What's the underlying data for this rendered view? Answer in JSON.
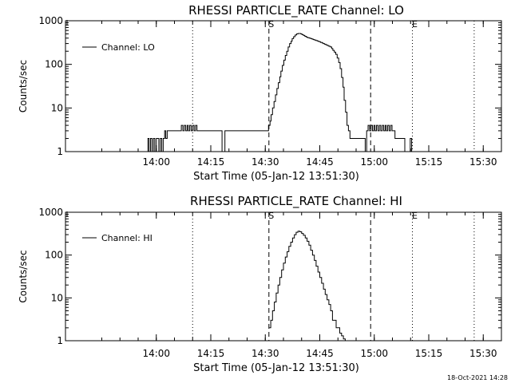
{
  "footer": {
    "timestamp": "18-Oct-2021 14:28"
  },
  "chart_data": [
    {
      "type": "line",
      "title": "RHESSI PARTICLE_RATE Channel: LO",
      "xlabel": "Start Time (05-Jan-12 13:51:30)",
      "ylabel": "Counts/sec",
      "xlim_min": [
        -16.5,
        103.5
      ],
      "ylim": [
        1,
        1000
      ],
      "y_scale": "log",
      "x_ticks": [
        "14:00",
        "14:15",
        "14:30",
        "14:45",
        "15:00",
        "15:15",
        "15:30"
      ],
      "x_tick_minutes": [
        8.5,
        23.5,
        38.5,
        53.5,
        68.5,
        83.5,
        98.5
      ],
      "y_ticks": [
        "1",
        "10",
        "100",
        "1000"
      ],
      "y_tick_values": [
        1,
        10,
        100,
        1000
      ],
      "legend": {
        "label": "Channel: LO",
        "position": "top-left"
      },
      "marker_labels": {
        "start": "S",
        "end": "E"
      },
      "vlines": [
        {
          "x": 18.5,
          "style": "dotted"
        },
        {
          "x": 39.5,
          "style": "dashed"
        },
        {
          "x": 67.5,
          "style": "dashed"
        },
        {
          "x": 79.0,
          "style": "dotted"
        },
        {
          "x": 96.0,
          "style": "dotted"
        }
      ],
      "series": [
        {
          "name": "Channel: LO",
          "x_min": [
            5.8,
            6.2,
            6.5,
            6.9,
            7.3,
            7.7,
            8.1,
            8.5,
            8.9,
            9.2,
            9.6,
            10.0,
            10.4,
            10.8,
            11.1,
            11.5,
            11.9,
            12.3,
            12.7,
            13.1,
            13.5,
            13.9,
            14.3,
            14.6,
            15.0,
            15.4,
            15.8,
            16.2,
            16.6,
            17.0,
            17.3,
            17.7,
            18.1,
            18.5,
            18.9,
            19.3,
            19.7,
            20.0,
            20.4,
            20.8,
            21.2,
            21.6,
            22.0,
            22.4,
            22.8,
            23.1,
            23.5,
            23.9,
            24.3,
            24.7,
            25.1,
            25.5,
            25.8,
            26.2,
            26.6,
            27.0,
            27.4,
            27.8,
            28.2,
            28.5,
            28.9,
            29.3,
            29.7,
            30.1,
            30.5,
            30.9,
            31.3,
            31.6,
            32.0,
            32.4,
            32.8,
            33.2,
            33.6,
            34.0,
            34.3,
            34.7,
            35.1,
            35.5,
            35.9,
            36.3,
            36.7,
            37.1,
            37.4,
            37.8,
            38.2,
            38.6,
            39.0,
            39.4,
            39.8,
            40.1,
            40.5,
            40.9,
            41.3,
            41.7,
            42.1,
            42.5,
            42.8,
            43.2,
            43.6,
            44.0,
            44.4,
            44.8,
            45.2,
            45.6,
            45.9,
            46.3,
            46.7,
            47.1,
            47.5,
            47.9,
            48.3,
            48.6,
            49.0,
            49.4,
            49.8,
            50.2,
            50.6,
            51.0,
            51.4,
            51.7,
            52.1,
            52.5,
            52.9,
            53.3,
            53.7,
            54.1,
            54.4,
            54.8,
            55.2,
            55.6,
            56.0,
            56.4,
            56.8,
            57.1,
            57.5,
            57.9,
            58.3,
            58.7,
            59.1,
            59.5,
            59.9,
            60.2,
            60.6,
            61.0,
            61.4,
            61.8,
            62.2,
            62.6,
            62.9,
            63.3,
            63.7,
            64.1,
            64.5,
            64.9,
            65.3,
            65.7,
            66.0,
            66.4,
            66.8,
            67.2,
            67.6,
            68.0,
            68.4,
            68.7,
            69.1,
            69.5,
            69.9,
            70.3,
            70.7,
            71.1,
            71.5,
            71.8,
            72.2,
            72.6,
            73.0,
            73.4,
            73.8,
            74.2,
            74.5,
            74.9,
            75.3,
            75.7,
            76.1,
            76.5,
            76.9,
            77.2,
            77.6,
            78.0,
            78.4,
            78.8,
            79.2,
            79.6,
            80.0,
            80.3,
            80.7,
            81.1,
            81.5,
            81.9,
            82.3,
            82.7,
            83.0,
            83.4,
            83.8,
            84.2,
            84.6,
            85.0,
            85.4,
            85.8,
            86.1,
            86.5,
            86.9,
            87.3,
            87.7,
            88.1,
            88.5
          ],
          "values": [
            1,
            2,
            1,
            2,
            1,
            2,
            1,
            2,
            2,
            1,
            2,
            1,
            2,
            3,
            2,
            3,
            3,
            3,
            3,
            3,
            3,
            3,
            3,
            3,
            3,
            4,
            3,
            4,
            3,
            4,
            3,
            4,
            3,
            4,
            3,
            4,
            3,
            3,
            3,
            3,
            3,
            3,
            3,
            3,
            3,
            3,
            3,
            3,
            3,
            3,
            3,
            3,
            3,
            3,
            1,
            1,
            3,
            3,
            3,
            3,
            3,
            3,
            3,
            3,
            3,
            3,
            3,
            3,
            3,
            3,
            3,
            3,
            3,
            3,
            3,
            3,
            3,
            3,
            3,
            3,
            3,
            3,
            3,
            3,
            3,
            3,
            3,
            4,
            5,
            7,
            10,
            14,
            20,
            28,
            38,
            52,
            70,
            95,
            125,
            160,
            200,
            250,
            300,
            340,
            390,
            430,
            470,
            500,
            510,
            510,
            500,
            480,
            460,
            440,
            420,
            410,
            400,
            390,
            380,
            370,
            360,
            350,
            340,
            330,
            320,
            310,
            300,
            290,
            280,
            270,
            260,
            250,
            230,
            210,
            190,
            170,
            140,
            110,
            80,
            50,
            30,
            15,
            8,
            4,
            3,
            2,
            2,
            2,
            2,
            2,
            2,
            2,
            2,
            2,
            2,
            2,
            1,
            3,
            4,
            3,
            4,
            3,
            4,
            3,
            4,
            3,
            4,
            3,
            4,
            3,
            4,
            3,
            4,
            3,
            4,
            3,
            3,
            2,
            2,
            2,
            2,
            2,
            2,
            2,
            1,
            1,
            1,
            1,
            2,
            1,
            1,
            1,
            1,
            1,
            1,
            1,
            1,
            1,
            1,
            1,
            1,
            1
          ]
        }
      ]
    },
    {
      "type": "line",
      "title": "RHESSI PARTICLE_RATE Channel: HI",
      "xlabel": "Start Time (05-Jan-12 13:51:30)",
      "ylabel": "Counts/sec",
      "xlim_min": [
        -16.5,
        103.5
      ],
      "ylim": [
        1,
        1000
      ],
      "y_scale": "log",
      "x_ticks": [
        "14:00",
        "14:15",
        "14:30",
        "14:45",
        "15:00",
        "15:15",
        "15:30"
      ],
      "x_tick_minutes": [
        8.5,
        23.5,
        38.5,
        53.5,
        68.5,
        83.5,
        98.5
      ],
      "y_ticks": [
        "1",
        "10",
        "100",
        "1000"
      ],
      "y_tick_values": [
        1,
        10,
        100,
        1000
      ],
      "legend": {
        "label": "Channel: HI",
        "position": "top-left"
      },
      "marker_labels": {
        "start": "S",
        "end": "E"
      },
      "vlines": [
        {
          "x": 18.5,
          "style": "dotted"
        },
        {
          "x": 39.5,
          "style": "dashed"
        },
        {
          "x": 67.5,
          "style": "dashed"
        },
        {
          "x": 79.0,
          "style": "dotted"
        },
        {
          "x": 96.0,
          "style": "dotted"
        }
      ],
      "series": [
        {
          "name": "Channel: HI",
          "x_min": [
            39.6,
            40.0,
            40.5,
            41.0,
            41.5,
            42.0,
            42.5,
            43.0,
            43.5,
            44.0,
            44.5,
            45.0,
            45.5,
            46.0,
            46.5,
            47.0,
            47.5,
            48.0,
            48.5,
            49.0,
            49.5,
            50.0,
            50.5,
            51.0,
            51.5,
            52.0,
            52.5,
            53.0,
            53.5,
            54.0,
            54.5,
            55.0,
            55.5,
            56.0,
            56.5,
            57.0,
            57.5,
            58.0,
            58.5,
            59.0,
            59.5,
            60.0,
            60.5
          ],
          "values": [
            2,
            3,
            5,
            8,
            13,
            20,
            30,
            45,
            65,
            90,
            120,
            160,
            200,
            250,
            300,
            340,
            360,
            350,
            320,
            290,
            250,
            210,
            170,
            130,
            100,
            75,
            55,
            40,
            30,
            22,
            16,
            12,
            9,
            7,
            5,
            3,
            3,
            2,
            2,
            1.5,
            1.3,
            1.1,
            1
          ]
        }
      ]
    }
  ]
}
